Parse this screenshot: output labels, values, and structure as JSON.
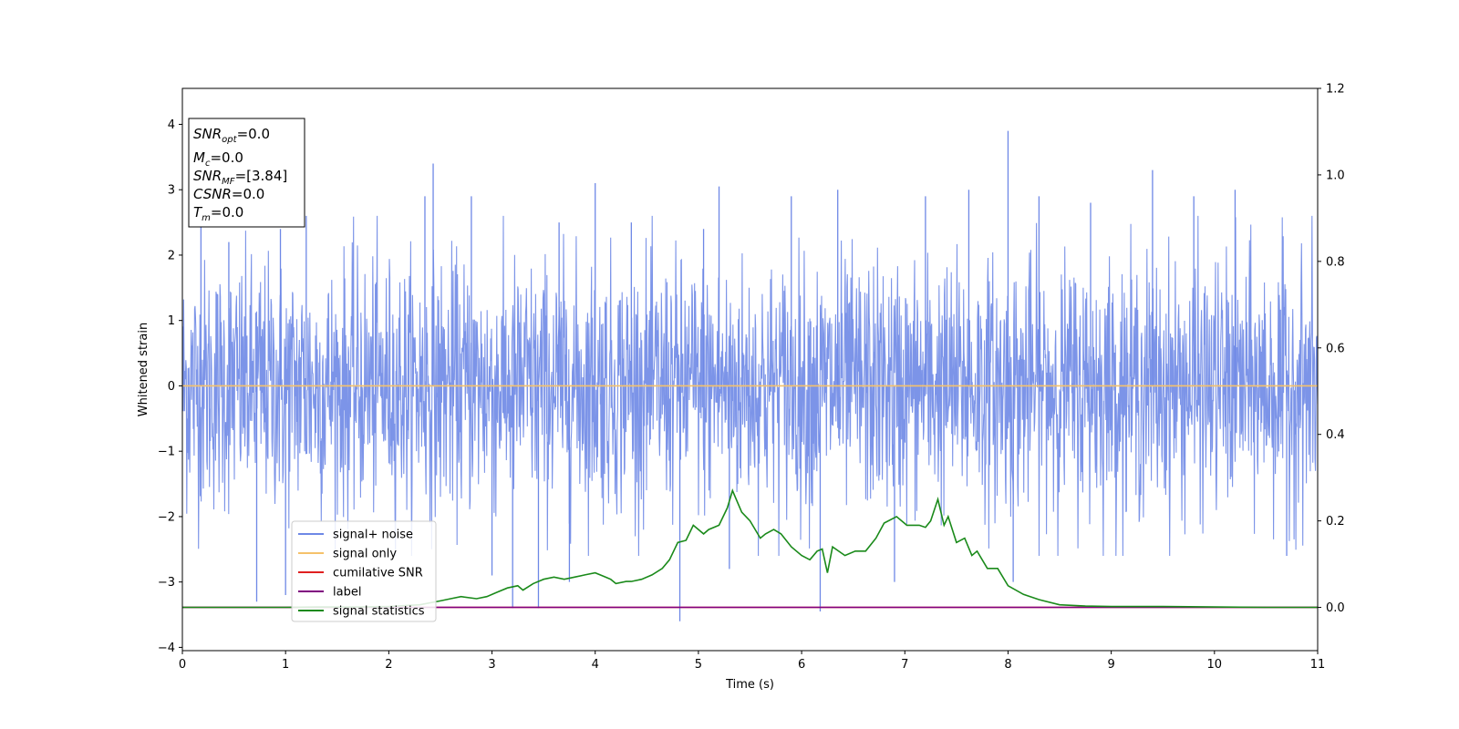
{
  "chart_data": {
    "type": "line",
    "xlabel": "Time (s)",
    "ylabel": "Whitened strain",
    "xlim": [
      0,
      11
    ],
    "ylim": [
      -4.05,
      4.55
    ],
    "y2lim": [
      -0.1,
      1.2
    ],
    "xticks": [
      0,
      1,
      2,
      3,
      4,
      5,
      6,
      7,
      8,
      9,
      10,
      11
    ],
    "yticks": [
      -4,
      -3,
      -2,
      -1,
      0,
      1,
      2,
      3,
      4
    ],
    "y2ticks": [
      0.0,
      0.2,
      0.4,
      0.6,
      0.8,
      1.0,
      1.2
    ],
    "y2tick_labels": [
      "0.0",
      "0.2",
      "0.4",
      "0.6",
      "0.8",
      "1.0",
      "1.2"
    ],
    "grid": false,
    "legend_position": "lower-left",
    "info_box": {
      "snr_opt": "=0.0",
      "mc": "=0.0",
      "snr_mf": "=[3.84]",
      "csnr": "=0.0",
      "tm": "=0.0"
    },
    "series": [
      {
        "name": "signal+ noise",
        "axis": "left",
        "color": "#6e88e6",
        "kind": "noise",
        "description_stats": {
          "typical_abs_max": 2.0,
          "spikes": [
            [
              0.18,
              2.5
            ],
            [
              0.45,
              2.2
            ],
            [
              0.72,
              -3.3
            ],
            [
              0.95,
              2.4
            ],
            [
              1.0,
              -3.2
            ],
            [
              1.2,
              2.6
            ],
            [
              2.35,
              2.9
            ],
            [
              2.43,
              3.4
            ],
            [
              2.8,
              2.9
            ],
            [
              3.0,
              -2.9
            ],
            [
              3.2,
              -3.4
            ],
            [
              3.45,
              -3.4
            ],
            [
              3.65,
              2.5
            ],
            [
              3.75,
              -3.0
            ],
            [
              4.0,
              3.1
            ],
            [
              4.35,
              2.5
            ],
            [
              4.82,
              -3.6
            ],
            [
              5.05,
              2.4
            ],
            [
              5.2,
              3.05
            ],
            [
              5.3,
              -2.8
            ],
            [
              5.9,
              2.9
            ],
            [
              6.18,
              -3.45
            ],
            [
              6.35,
              3.0
            ],
            [
              6.9,
              -3.0
            ],
            [
              7.2,
              2.9
            ],
            [
              7.62,
              3.0
            ],
            [
              8.0,
              3.9
            ],
            [
              8.05,
              -3.0
            ],
            [
              8.3,
              2.9
            ],
            [
              8.8,
              2.8
            ],
            [
              9.4,
              3.3
            ],
            [
              9.8,
              2.9
            ],
            [
              10.2,
              3.0
            ],
            [
              10.7,
              -2.6
            ]
          ]
        }
      },
      {
        "name": "signal only",
        "axis": "left",
        "color": "#f5c26b",
        "x": [
          0,
          11
        ],
        "y": [
          0,
          0
        ]
      },
      {
        "name": "cumilative SNR",
        "axis": "right",
        "color": "#e02020",
        "x": [
          0,
          11
        ],
        "y": [
          0,
          0
        ]
      },
      {
        "name": "label",
        "axis": "right",
        "color": "#800080",
        "x": [
          0,
          11
        ],
        "y": [
          0,
          0
        ]
      },
      {
        "name": "signal statistics",
        "axis": "right",
        "color": "#1a8a1a",
        "x": [
          0,
          0.3,
          0.7,
          1.0,
          1.3,
          1.7,
          2.0,
          2.3,
          2.5,
          2.6,
          2.7,
          2.85,
          2.95,
          3.05,
          3.15,
          3.25,
          3.3,
          3.4,
          3.5,
          3.6,
          3.7,
          3.8,
          3.9,
          4.0,
          4.1,
          4.15,
          4.2,
          4.3,
          4.35,
          4.45,
          4.55,
          4.65,
          4.72,
          4.8,
          4.88,
          4.95,
          5.05,
          5.1,
          5.2,
          5.28,
          5.33,
          5.42,
          5.5,
          5.6,
          5.65,
          5.73,
          5.8,
          5.9,
          6.0,
          6.08,
          6.15,
          6.2,
          6.25,
          6.3,
          6.42,
          6.52,
          6.62,
          6.72,
          6.8,
          6.92,
          7.02,
          7.08,
          7.14,
          7.2,
          7.25,
          7.32,
          7.38,
          7.42,
          7.5,
          7.58,
          7.65,
          7.7,
          7.8,
          7.9,
          8.0,
          8.15,
          8.3,
          8.5,
          8.75,
          9.0,
          9.5,
          10.0,
          10.5,
          11.0
        ],
        "y": [
          0.0,
          0.0,
          0.0,
          0.0,
          0.001,
          0.001,
          0.002,
          0.006,
          0.015,
          0.02,
          0.025,
          0.02,
          0.025,
          0.035,
          0.045,
          0.05,
          0.04,
          0.055,
          0.065,
          0.07,
          0.065,
          0.07,
          0.075,
          0.08,
          0.07,
          0.065,
          0.055,
          0.06,
          0.06,
          0.065,
          0.075,
          0.09,
          0.11,
          0.15,
          0.155,
          0.19,
          0.17,
          0.18,
          0.19,
          0.23,
          0.27,
          0.22,
          0.2,
          0.16,
          0.17,
          0.18,
          0.17,
          0.14,
          0.12,
          0.11,
          0.13,
          0.135,
          0.08,
          0.14,
          0.12,
          0.13,
          0.13,
          0.16,
          0.195,
          0.21,
          0.19,
          0.19,
          0.19,
          0.185,
          0.2,
          0.25,
          0.19,
          0.21,
          0.15,
          0.16,
          0.12,
          0.13,
          0.09,
          0.09,
          0.05,
          0.03,
          0.018,
          0.006,
          0.003,
          0.002,
          0.002,
          0.001,
          0.0,
          0.0
        ]
      }
    ]
  }
}
